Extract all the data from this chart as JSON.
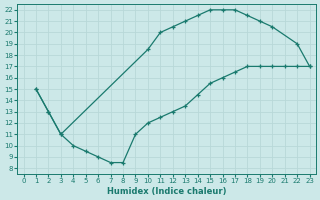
{
  "xlabel": "Humidex (Indice chaleur)",
  "xlim": [
    -0.5,
    23.5
  ],
  "ylim": [
    7.5,
    22.5
  ],
  "xticks": [
    0,
    1,
    2,
    3,
    4,
    5,
    6,
    7,
    8,
    9,
    10,
    11,
    12,
    13,
    14,
    15,
    16,
    17,
    18,
    19,
    20,
    21,
    22,
    23
  ],
  "yticks": [
    8,
    9,
    10,
    11,
    12,
    13,
    14,
    15,
    16,
    17,
    18,
    19,
    20,
    21,
    22
  ],
  "bg_color": "#cce8e8",
  "line_color": "#1a7a6e",
  "grid_color": "#b8d8d8",
  "upper_curve_x": [
    1,
    2,
    3,
    10,
    11,
    12,
    13,
    14,
    15,
    16,
    17,
    18,
    19,
    20,
    22,
    23
  ],
  "upper_curve_y": [
    15,
    13,
    11,
    18.5,
    20,
    20.5,
    21,
    21.5,
    22,
    22,
    22,
    21.5,
    21,
    20.5,
    19,
    17
  ],
  "lower_curve_x": [
    1,
    2,
    3,
    4,
    5,
    6,
    7,
    8,
    9,
    10,
    11,
    12,
    13,
    14,
    15,
    16,
    17,
    18,
    19,
    20,
    21,
    22,
    23
  ],
  "lower_curve_y": [
    15,
    13,
    11,
    10,
    9.5,
    9,
    8.5,
    8.5,
    11,
    12,
    12.5,
    13,
    13.5,
    14.5,
    15.5,
    16,
    16.5,
    17,
    17,
    17,
    17,
    17,
    17
  ]
}
